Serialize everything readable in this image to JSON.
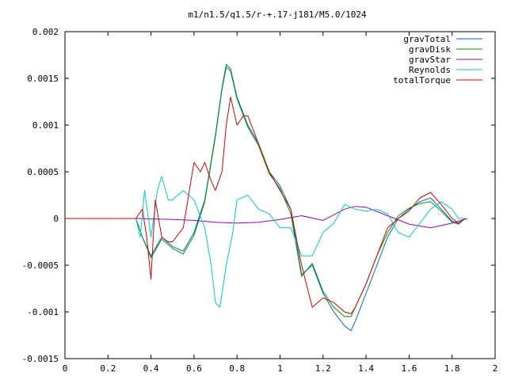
{
  "chart_data": {
    "type": "line",
    "title": "m1/n1.5/q1.5/r-+.17-j181/M5.0/1024",
    "xlabel": "",
    "ylabel": "",
    "xlim": [
      0,
      2
    ],
    "ylim": [
      -0.0015,
      0.002
    ],
    "xticks": [
      0,
      0.2,
      0.4,
      0.6,
      0.8,
      1,
      1.2,
      1.4,
      1.6,
      1.8,
      2
    ],
    "xtick_labels": [
      "0",
      "0.2",
      "0.4",
      "0.6",
      "0.8",
      "1",
      "1.2",
      "1.4",
      "1.6",
      "1.8",
      "2"
    ],
    "yticks": [
      -0.0015,
      -0.001,
      -0.0005,
      0,
      0.0005,
      0.001,
      0.0015,
      0.002
    ],
    "ytick_labels": [
      "-0.0015",
      "-0.001",
      "-0.0005",
      "0",
      "0.0005",
      "0.001",
      "0.0015",
      "0.002"
    ],
    "grid": false,
    "legend_position": "top-right",
    "series": [
      {
        "name": "gravTotal",
        "color": "#0066cc",
        "x": [
          0.33,
          0.36,
          0.4,
          0.45,
          0.5,
          0.55,
          0.6,
          0.65,
          0.7,
          0.73,
          0.75,
          0.77,
          0.8,
          0.85,
          0.9,
          0.95,
          1.0,
          1.05,
          1.1,
          1.15,
          1.2,
          1.25,
          1.3,
          1.33,
          1.35,
          1.4,
          1.45,
          1.5,
          1.55,
          1.6,
          1.65,
          1.7,
          1.75,
          1.8,
          1.83,
          1.86
        ],
        "y": [
          0.0,
          -0.0002,
          -0.0004,
          -0.0002,
          -0.0003,
          -0.00035,
          -0.00015,
          0.0002,
          0.0009,
          0.0014,
          0.00165,
          0.0016,
          0.0013,
          0.001,
          0.0008,
          0.0005,
          0.00035,
          0.0001,
          -0.0006,
          -0.0005,
          -0.0008,
          -0.001,
          -0.00115,
          -0.0012,
          -0.0011,
          -0.0008,
          -0.0005,
          -0.0002,
          0.0,
          0.0001,
          0.00018,
          0.00022,
          0.0001,
          -3e-05,
          -5e-05,
          0.0
        ]
      },
      {
        "name": "gravDisk",
        "color": "#009900",
        "x": [
          0.33,
          0.36,
          0.4,
          0.45,
          0.5,
          0.55,
          0.6,
          0.65,
          0.7,
          0.73,
          0.75,
          0.77,
          0.8,
          0.85,
          0.9,
          0.95,
          1.0,
          1.05,
          1.1,
          1.15,
          1.2,
          1.25,
          1.3,
          1.33,
          1.35,
          1.4,
          1.45,
          1.5,
          1.55,
          1.6,
          1.65,
          1.7,
          1.75,
          1.8,
          1.83,
          1.86
        ],
        "y": [
          0.0,
          -0.0002,
          -0.00042,
          -0.00022,
          -0.00032,
          -0.00038,
          -0.00018,
          0.00018,
          0.00088,
          0.00138,
          0.00162,
          0.00158,
          0.00128,
          0.00098,
          0.00078,
          0.00048,
          0.00032,
          5e-05,
          -0.00062,
          -0.00048,
          -0.00078,
          -0.00095,
          -0.00105,
          -0.00105,
          -0.00095,
          -0.0007,
          -0.0004,
          -0.00015,
          3e-05,
          0.00011,
          0.00016,
          0.00018,
          8e-05,
          -4e-05,
          -6e-05,
          0.0
        ]
      },
      {
        "name": "gravStar",
        "color": "#9900cc",
        "x": [
          0.0,
          0.35,
          0.5,
          0.6,
          0.7,
          0.8,
          0.9,
          1.0,
          1.1,
          1.2,
          1.3,
          1.35,
          1.4,
          1.5,
          1.6,
          1.7,
          1.8,
          1.87
        ],
        "y": [
          0.0,
          0.0,
          -1e-05,
          -2e-05,
          -4e-05,
          -5e-05,
          -4e-05,
          -1e-05,
          3e-05,
          -2e-05,
          0.0001,
          0.00013,
          0.00012,
          3e-05,
          -6e-05,
          -0.0001,
          -5e-05,
          0.0
        ]
      },
      {
        "name": "Reynolds",
        "color": "#00cccc",
        "x": [
          0.33,
          0.35,
          0.37,
          0.4,
          0.43,
          0.45,
          0.48,
          0.5,
          0.55,
          0.6,
          0.65,
          0.68,
          0.7,
          0.72,
          0.73,
          0.75,
          0.78,
          0.8,
          0.85,
          0.9,
          0.95,
          1.0,
          1.05,
          1.1,
          1.15,
          1.2,
          1.25,
          1.3,
          1.35,
          1.4,
          1.45,
          1.5,
          1.55,
          1.6,
          1.65,
          1.7,
          1.75,
          1.8,
          1.83,
          1.86
        ],
        "y": [
          0.0,
          -0.0002,
          0.0003,
          -0.0002,
          0.0003,
          0.00045,
          0.0002,
          0.0002,
          0.0003,
          0.0002,
          -0.0001,
          -0.0005,
          -0.0009,
          -0.00095,
          -0.0008,
          -0.0005,
          -0.00015,
          0.0002,
          0.00025,
          0.0001,
          5e-05,
          -0.0001,
          -0.0001,
          -0.0004,
          -0.0004,
          -0.00015,
          -5e-05,
          0.00015,
          0.0001,
          8e-05,
          0.0001,
          5e-05,
          -0.00015,
          -0.0002,
          -5e-05,
          0.0001,
          0.00018,
          0.0001,
          0.0,
          0.0
        ]
      },
      {
        "name": "totalTorque",
        "color": "#dd0000",
        "x": [
          0.0,
          0.33,
          0.36,
          0.38,
          0.4,
          0.42,
          0.45,
          0.48,
          0.5,
          0.55,
          0.6,
          0.63,
          0.65,
          0.68,
          0.7,
          0.73,
          0.75,
          0.77,
          0.8,
          0.83,
          0.85,
          0.9,
          0.95,
          1.0,
          1.05,
          1.1,
          1.15,
          1.2,
          1.25,
          1.3,
          1.33,
          1.35,
          1.4,
          1.45,
          1.5,
          1.55,
          1.6,
          1.65,
          1.7,
          1.75,
          1.8,
          1.83,
          1.86
        ],
        "y": [
          0.0,
          0.0,
          0.0001,
          -0.0002,
          -0.00065,
          0.0002,
          -0.0002,
          -0.00025,
          -0.00025,
          -0.0001,
          0.0006,
          0.0005,
          0.0006,
          0.0004,
          0.0003,
          0.0005,
          0.001,
          0.0013,
          0.001,
          0.0011,
          0.0011,
          0.0008,
          0.0005,
          0.0003,
          0.0001,
          -0.0005,
          -0.00095,
          -0.00085,
          -0.0009,
          -0.001,
          -0.00102,
          -0.00095,
          -0.0007,
          -0.0004,
          -0.0001,
          0.0,
          8e-05,
          0.00022,
          0.00028,
          0.00015,
          0.0,
          -5e-05,
          0.0
        ]
      }
    ]
  }
}
